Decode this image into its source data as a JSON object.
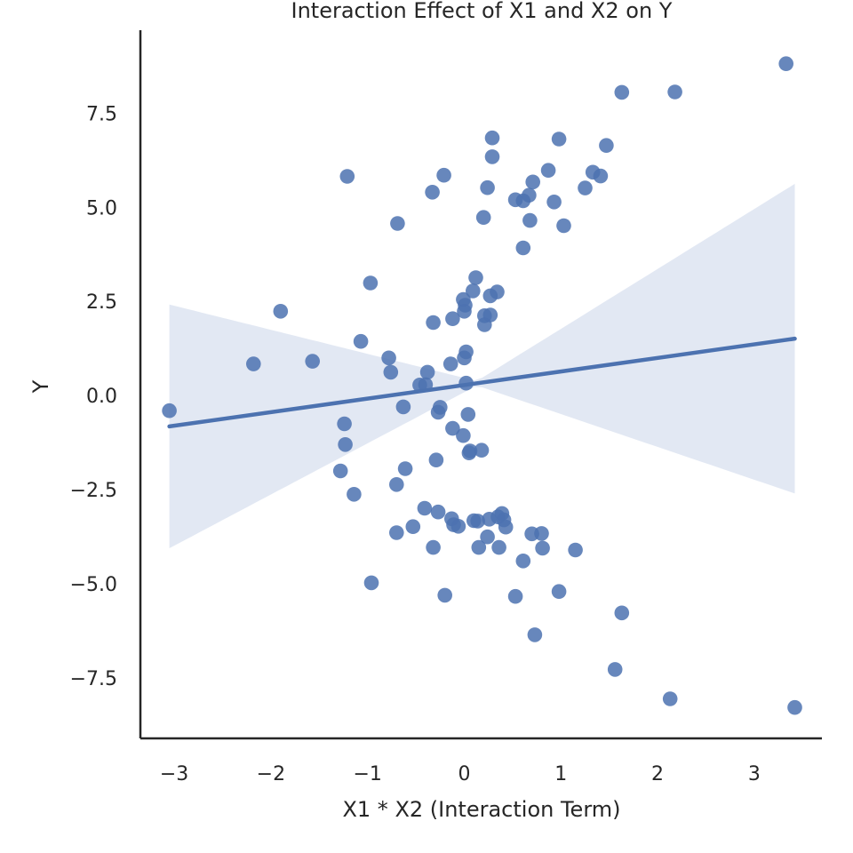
{
  "chart_data": {
    "type": "scatter",
    "title": "Interaction Effect of X1 and X2 on Y",
    "xlabel": "X1 * X2 (Interaction Term)",
    "ylabel": "Y",
    "xlim": [
      -3.35,
      3.7
    ],
    "ylim": [
      -9.1,
      9.7
    ],
    "xticks": [
      -3,
      -2,
      -1,
      0,
      1,
      2,
      3
    ],
    "xtick_labels": [
      "−3",
      "−2",
      "−1",
      "0",
      "1",
      "2",
      "3"
    ],
    "yticks": [
      -7.5,
      -5.0,
      -2.5,
      0.0,
      2.5,
      5.0,
      7.5
    ],
    "ytick_labels": [
      "−7.5",
      "−5.0",
      "−2.5",
      "0.0",
      "2.5",
      "5.0",
      "7.5"
    ],
    "grid": false,
    "colors": {
      "points": "#4c72b0",
      "line": "#4c72b0",
      "band": "#dde4f1",
      "axis": "#262626"
    },
    "regression": {
      "x_range": [
        -3.05,
        3.42
      ],
      "intercept": 0.28,
      "slope": 0.36,
      "ci_lower_at_ends": [
        -4.25,
        -2.4
      ],
      "ci_upper_at_ends": [
        2.1,
        5.7
      ]
    },
    "points": [
      [
        -3.05,
        -0.4
      ],
      [
        -2.18,
        0.84
      ],
      [
        -1.9,
        2.24
      ],
      [
        -1.57,
        0.91
      ],
      [
        -1.21,
        5.82
      ],
      [
        -1.24,
        -0.75
      ],
      [
        -1.23,
        -1.3
      ],
      [
        -1.28,
        -2.0
      ],
      [
        -1.14,
        -2.62
      ],
      [
        -1.07,
        1.44
      ],
      [
        -0.97,
        2.99
      ],
      [
        -0.96,
        -4.97
      ],
      [
        -0.78,
        1.0
      ],
      [
        -0.76,
        0.62
      ],
      [
        -0.69,
        4.57
      ],
      [
        -0.7,
        -2.36
      ],
      [
        -0.7,
        -3.64
      ],
      [
        -0.63,
        -0.3
      ],
      [
        -0.61,
        -1.94
      ],
      [
        -0.53,
        -3.48
      ],
      [
        -0.46,
        0.28
      ],
      [
        -0.4,
        0.29
      ],
      [
        -0.38,
        0.62
      ],
      [
        -0.41,
        -2.99
      ],
      [
        -0.33,
        5.4
      ],
      [
        -0.32,
        1.94
      ],
      [
        -0.32,
        -4.03
      ],
      [
        -0.29,
        -1.71
      ],
      [
        -0.27,
        -0.44
      ],
      [
        -0.25,
        -0.31
      ],
      [
        -0.27,
        -3.09
      ],
      [
        -0.21,
        5.85
      ],
      [
        -0.2,
        -5.3
      ],
      [
        -0.14,
        0.84
      ],
      [
        -0.12,
        2.04
      ],
      [
        -0.12,
        -0.87
      ],
      [
        -0.13,
        -3.27
      ],
      [
        -0.11,
        -3.43
      ],
      [
        -0.06,
        -3.47
      ],
      [
        -0.01,
        2.55
      ],
      [
        0.0,
        2.24
      ],
      [
        0.01,
        2.4
      ],
      [
        0.02,
        1.16
      ],
      [
        0.0,
        1.0
      ],
      [
        0.02,
        0.33
      ],
      [
        -0.01,
        -1.06
      ],
      [
        0.04,
        -0.5
      ],
      [
        0.05,
        -1.52
      ],
      [
        0.06,
        -1.47
      ],
      [
        0.09,
        2.78
      ],
      [
        0.12,
        3.13
      ],
      [
        0.1,
        -3.32
      ],
      [
        0.14,
        -3.33
      ],
      [
        0.15,
        -4.03
      ],
      [
        0.18,
        -1.45
      ],
      [
        0.2,
        4.73
      ],
      [
        0.21,
        2.12
      ],
      [
        0.21,
        1.88
      ],
      [
        0.24,
        5.52
      ],
      [
        0.24,
        -3.75
      ],
      [
        0.26,
        -3.28
      ],
      [
        0.27,
        2.14
      ],
      [
        0.27,
        2.65
      ],
      [
        0.29,
        6.84
      ],
      [
        0.29,
        6.34
      ],
      [
        0.34,
        2.75
      ],
      [
        0.35,
        -3.22
      ],
      [
        0.36,
        -4.03
      ],
      [
        0.39,
        -3.13
      ],
      [
        0.41,
        -3.3
      ],
      [
        0.43,
        -3.49
      ],
      [
        0.53,
        5.2
      ],
      [
        0.53,
        -5.33
      ],
      [
        0.61,
        5.17
      ],
      [
        0.61,
        3.92
      ],
      [
        0.61,
        -4.39
      ],
      [
        0.67,
        5.32
      ],
      [
        0.68,
        4.65
      ],
      [
        0.7,
        -3.67
      ],
      [
        0.71,
        5.67
      ],
      [
        0.73,
        -6.35
      ],
      [
        0.8,
        -3.66
      ],
      [
        0.81,
        -4.05
      ],
      [
        0.87,
        5.98
      ],
      [
        0.93,
        5.14
      ],
      [
        0.98,
        6.81
      ],
      [
        0.98,
        -5.2
      ],
      [
        1.03,
        4.51
      ],
      [
        1.15,
        -4.1
      ],
      [
        1.25,
        5.51
      ],
      [
        1.33,
        5.93
      ],
      [
        1.41,
        5.83
      ],
      [
        1.47,
        6.64
      ],
      [
        1.56,
        -7.27
      ],
      [
        1.63,
        8.05
      ],
      [
        1.63,
        -5.77
      ],
      [
        2.13,
        -8.05
      ],
      [
        2.18,
        8.06
      ],
      [
        3.33,
        8.81
      ],
      [
        3.42,
        -8.28
      ]
    ]
  }
}
